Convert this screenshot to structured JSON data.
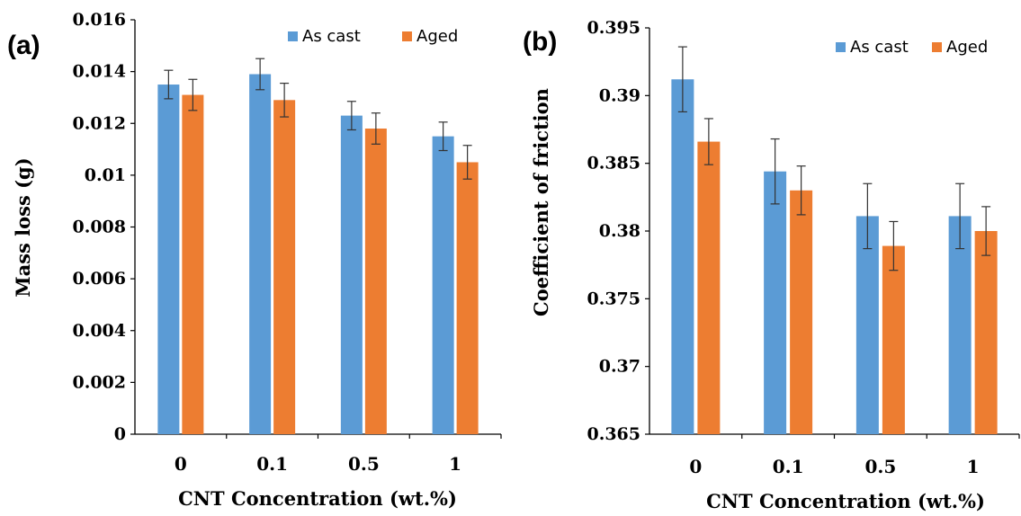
{
  "chart_data": [
    {
      "type": "bar",
      "panel_label": "(a)",
      "xlabel": "CNT Concentration (wt.%)",
      "ylabel": "Mass loss (g)",
      "categories": [
        "0",
        "0.1",
        "0.5",
        "1"
      ],
      "ylim": [
        0,
        0.016
      ],
      "yticks": [
        "0",
        "0.002",
        "0.004",
        "0.006",
        "0.008",
        "0.01",
        "0.012",
        "0.014",
        "0.016"
      ],
      "legend_position": "top-right",
      "grid": false,
      "series": [
        {
          "name": "As cast",
          "color": "#5b9bd5",
          "values": [
            0.0135,
            0.0139,
            0.0123,
            0.0115
          ],
          "errors": [
            0.00055,
            0.0006,
            0.00055,
            0.00055
          ]
        },
        {
          "name": "Aged",
          "color": "#ed7d31",
          "values": [
            0.0131,
            0.0129,
            0.0118,
            0.0105
          ],
          "errors": [
            0.0006,
            0.00065,
            0.0006,
            0.00065
          ]
        }
      ]
    },
    {
      "type": "bar",
      "panel_label": "(b)",
      "xlabel": "CNT Concentration (wt.%)",
      "ylabel": "Coefficient of friction",
      "categories": [
        "0",
        "0.1",
        "0.5",
        "1"
      ],
      "ylim": [
        0.365,
        0.395
      ],
      "yticks": [
        "0.365",
        "0.37",
        "0.375",
        "0.38",
        "0.385",
        "0.39",
        "0.395"
      ],
      "legend_position": "top-right",
      "grid": false,
      "series": [
        {
          "name": "As cast",
          "color": "#5b9bd5",
          "values": [
            0.3912,
            0.3844,
            0.3811,
            0.3811
          ],
          "errors": [
            0.0024,
            0.0024,
            0.0024,
            0.0024
          ]
        },
        {
          "name": "Aged",
          "color": "#ed7d31",
          "values": [
            0.3866,
            0.383,
            0.3789,
            0.38
          ],
          "errors": [
            0.0017,
            0.0018,
            0.0018,
            0.0018
          ]
        }
      ]
    }
  ]
}
